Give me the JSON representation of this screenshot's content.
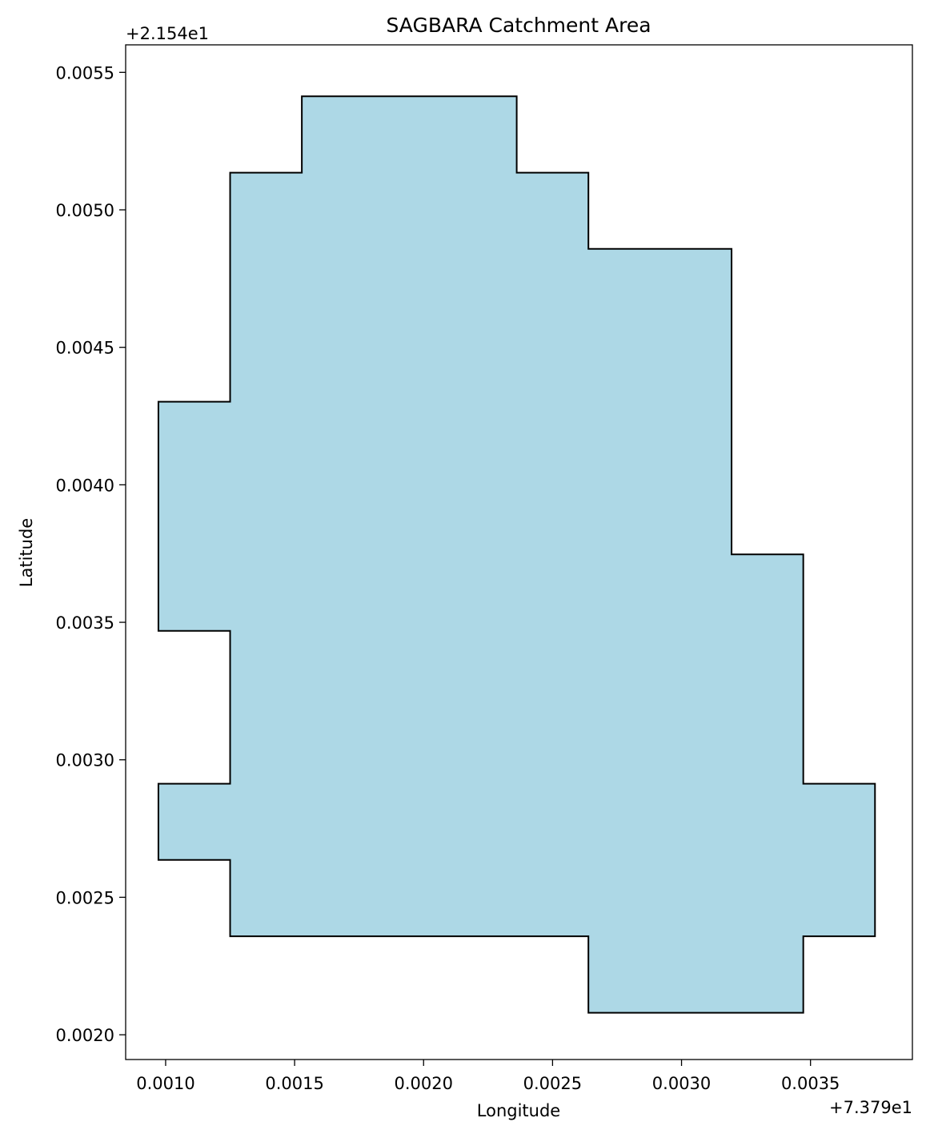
{
  "chart_data": {
    "type": "polygon",
    "title": "SAGBARA Catchment Area",
    "xlabel": "Longitude",
    "ylabel": "Latitude",
    "x_offset_label": "+7.379e1",
    "y_offset_label": "+2.154e1",
    "xlim": [
      0.000845,
      0.003895
    ],
    "ylim": [
      0.00191,
      0.0056
    ],
    "x_ticks": [
      {
        "value": 0.001,
        "label": "0.0010"
      },
      {
        "value": 0.0015,
        "label": "0.0015"
      },
      {
        "value": 0.002,
        "label": "0.0020"
      },
      {
        "value": 0.0025,
        "label": "0.0025"
      },
      {
        "value": 0.003,
        "label": "0.0030"
      },
      {
        "value": 0.0035,
        "label": "0.0035"
      }
    ],
    "y_ticks": [
      {
        "value": 0.002,
        "label": "0.0020"
      },
      {
        "value": 0.0025,
        "label": "0.0025"
      },
      {
        "value": 0.003,
        "label": "0.0030"
      },
      {
        "value": 0.0035,
        "label": "0.0035"
      },
      {
        "value": 0.004,
        "label": "0.0040"
      },
      {
        "value": 0.0045,
        "label": "0.0045"
      },
      {
        "value": 0.005,
        "label": "0.0050"
      },
      {
        "value": 0.0055,
        "label": "0.0055"
      }
    ],
    "fill_color": "#add8e6",
    "edge_color": "#000000",
    "grid": false,
    "polygon": [
      [
        0.001528,
        0.005413
      ],
      [
        0.002361,
        0.005413
      ],
      [
        0.002361,
        0.005135
      ],
      [
        0.002639,
        0.005135
      ],
      [
        0.002639,
        0.004858
      ],
      [
        0.003194,
        0.004858
      ],
      [
        0.003194,
        0.003747
      ],
      [
        0.003472,
        0.003747
      ],
      [
        0.003472,
        0.002913
      ],
      [
        0.00375,
        0.002913
      ],
      [
        0.00375,
        0.002358
      ],
      [
        0.003472,
        0.002358
      ],
      [
        0.003472,
        0.00208
      ],
      [
        0.002639,
        0.00208
      ],
      [
        0.002639,
        0.002358
      ],
      [
        0.00125,
        0.002358
      ],
      [
        0.00125,
        0.002636
      ],
      [
        0.000972,
        0.002636
      ],
      [
        0.000972,
        0.002913
      ],
      [
        0.00125,
        0.002913
      ],
      [
        0.00125,
        0.003469
      ],
      [
        0.000972,
        0.003469
      ],
      [
        0.000972,
        0.004302
      ],
      [
        0.00125,
        0.004302
      ],
      [
        0.00125,
        0.005135
      ],
      [
        0.001528,
        0.005135
      ]
    ]
  }
}
